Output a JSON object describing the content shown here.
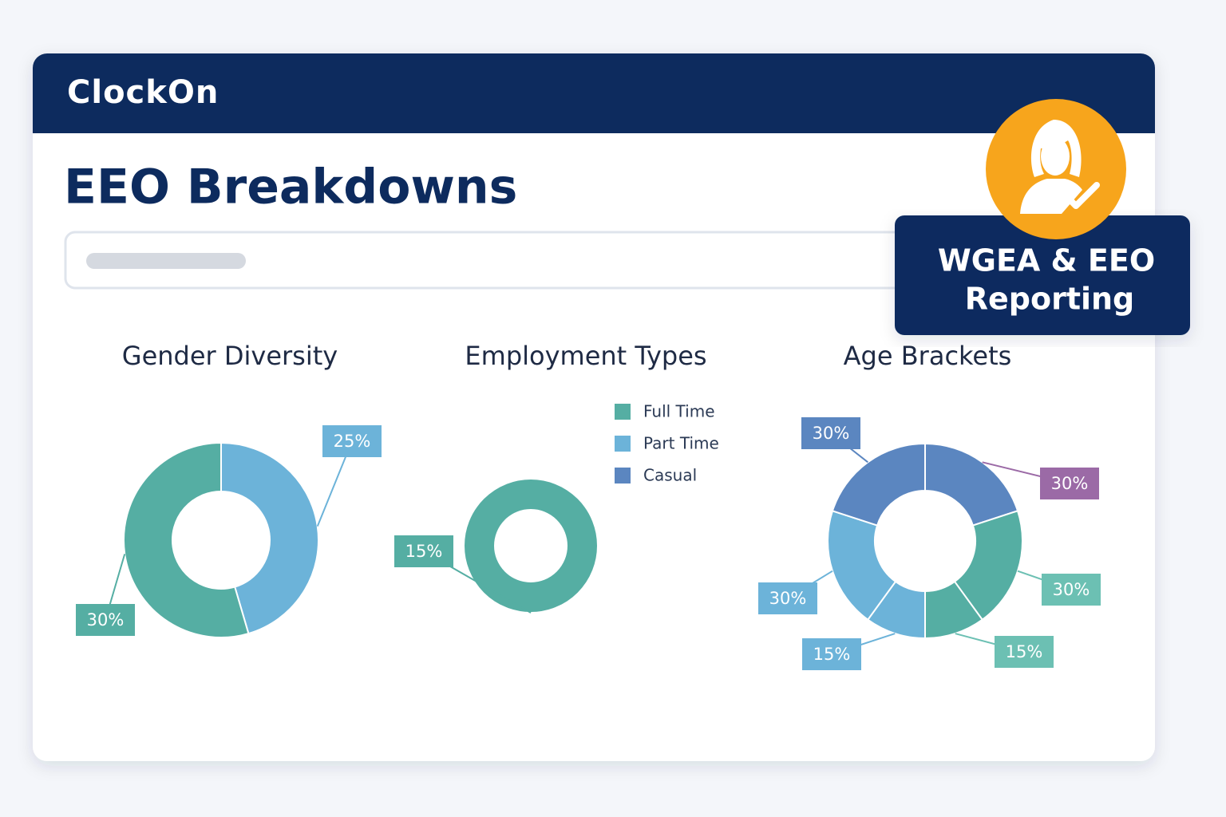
{
  "header": {
    "logo": "ClockOn"
  },
  "page_title": "EEO Breakdowns",
  "badge": [
    "WGEA & EEO",
    "Reporting"
  ],
  "chart_data": [
    {
      "type": "donut",
      "title": "Gender Diversity",
      "values": [
        25,
        30
      ],
      "value_labels": [
        "25%",
        "30%"
      ],
      "colors": [
        "#6cb3d9",
        "#55aea3"
      ]
    },
    {
      "type": "donut",
      "title": "Employment Types",
      "categories": [
        "Full Time",
        "Part Time",
        "Casual"
      ],
      "values": [
        15,
        null,
        null
      ],
      "value_labels": [
        "15%",
        null,
        null
      ],
      "colors": [
        "#55aea3",
        "#6cb3d9",
        "#5b86c0"
      ],
      "legend": "top-right"
    },
    {
      "type": "donut",
      "title": "Age Brackets",
      "values": [
        30,
        30,
        15,
        15,
        30,
        30
      ],
      "value_labels": [
        "30%",
        "30%",
        "15%",
        "15%",
        "30%",
        "30%"
      ],
      "colors": [
        "#5b86c0",
        "#55aea3",
        "#55aea3",
        "#6cb3d9",
        "#6cb3d9",
        "#5b86c0"
      ],
      "label_colors": [
        "#9b6aa6",
        "#6cc0b3",
        "#6cc0b3",
        "#6cb3d9",
        "#6cb3d9",
        "#5b86c0"
      ]
    }
  ]
}
